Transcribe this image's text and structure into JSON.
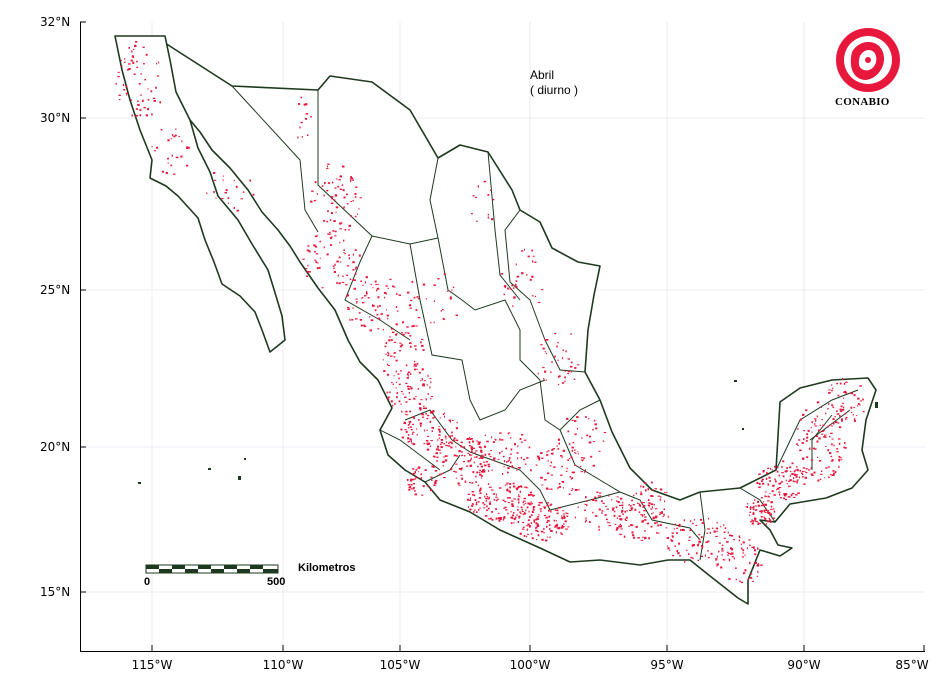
{
  "map": {
    "title_line1": "Abril",
    "title_line2": "( diurno )",
    "colors": {
      "outline": "#1e3a1e",
      "points": "#e8173c",
      "grid": "#e6e6f0",
      "frame": "#000000",
      "logo": "#e8173c"
    },
    "latitude_labels": [
      "32°N",
      "30°N",
      "25°N",
      "20°N",
      "15°N"
    ],
    "longitude_labels": [
      "115°W",
      "110°W",
      "105°W",
      "100°W",
      "95°W",
      "90°W",
      "85°W"
    ],
    "scale_bar": {
      "unit_label": "Kilometros",
      "start_label": "0",
      "end_label": "500"
    },
    "logo": {
      "text": "CONABIO",
      "icon": "conabio-emblem-icon"
    }
  }
}
